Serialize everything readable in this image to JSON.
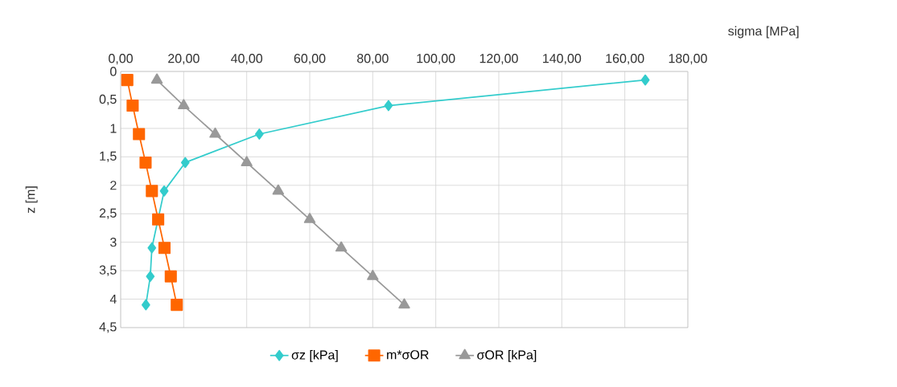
{
  "chart_data": {
    "type": "line",
    "xlabel": "sigma [MPa]",
    "ylabel": "z [m]",
    "xlim": [
      0,
      180
    ],
    "xticks": [
      {
        "value": 0,
        "label": "0,00"
      },
      {
        "value": 20,
        "label": "20,00"
      },
      {
        "value": 40,
        "label": "40,00"
      },
      {
        "value": 60,
        "label": "60,00"
      },
      {
        "value": 80,
        "label": "80,00"
      },
      {
        "value": 100,
        "label": "100,00"
      },
      {
        "value": 120,
        "label": "120,00"
      },
      {
        "value": 140,
        "label": "140,00"
      },
      {
        "value": 160,
        "label": "160,00"
      },
      {
        "value": 180,
        "label": "180,00"
      }
    ],
    "ylim": [
      4.5,
      0
    ],
    "yticks": [
      0,
      {
        "value": 0.5,
        "label": "0,5"
      },
      1,
      {
        "value": 1.5,
        "label": "1,5"
      },
      2,
      {
        "value": 2.5,
        "label": "2,5"
      },
      3,
      {
        "value": 3.5,
        "label": "3,5"
      },
      4,
      {
        "value": 4.5,
        "label": "4,5"
      }
    ],
    "grid": true,
    "legend": "bottom",
    "series": [
      {
        "name": "σz [kPa]",
        "color": "#33cccc",
        "marker": "diamond",
        "x": [
          166.5,
          85,
          44,
          20.5,
          13.8,
          11.7,
          9.9,
          9.4,
          8.0
        ],
        "values": [
          0.15,
          0.6,
          1.1,
          1.6,
          2.1,
          null,
          3.1,
          3.6,
          4.1
        ]
      },
      {
        "name": "m*σOR",
        "color": "#ff6600",
        "marker": "square",
        "x": [
          2.1,
          3.8,
          5.8,
          7.9,
          9.9,
          11.9,
          13.9,
          15.9,
          17.8
        ],
        "values": [
          0.15,
          0.6,
          1.1,
          1.6,
          2.1,
          2.6,
          3.1,
          3.6,
          4.1
        ]
      },
      {
        "name": "σOR [kPa]",
        "color": "#999999",
        "marker": "triangle",
        "x": [
          11.5,
          20,
          30,
          40,
          50,
          60,
          70,
          80,
          90
        ],
        "values": [
          0.15,
          0.6,
          1.1,
          1.6,
          2.1,
          2.6,
          3.1,
          3.6,
          4.1
        ]
      }
    ]
  }
}
